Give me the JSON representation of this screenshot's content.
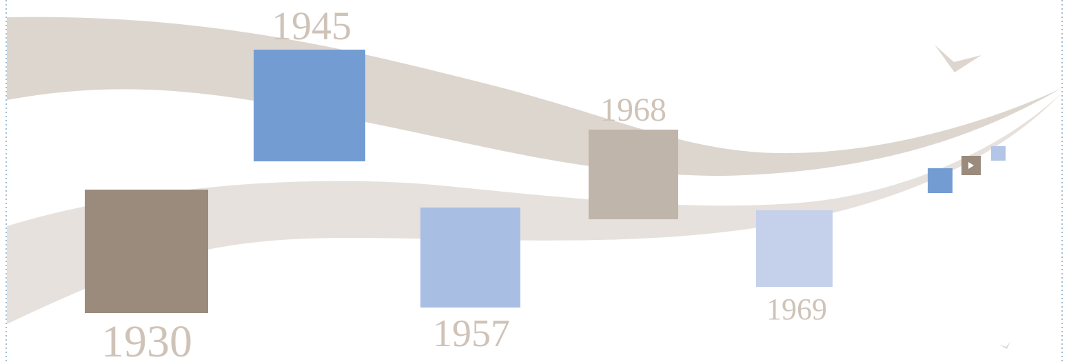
{
  "milestones": [
    "1930",
    "1945",
    "1957",
    "1968",
    "1969"
  ]
}
